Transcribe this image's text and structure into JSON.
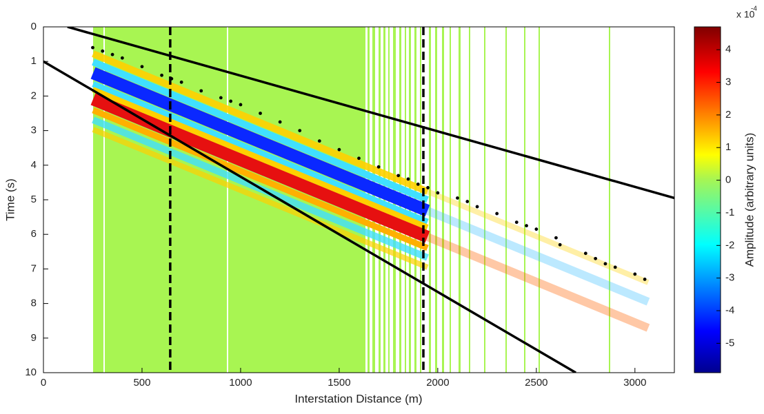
{
  "chart_data": {
    "type": "scatter",
    "xlabel": "Interstation Distance (m)",
    "ylabel": "Time (s)",
    "xlim": [
      0,
      3200
    ],
    "xticks": [
      0,
      500,
      1000,
      1500,
      2000,
      2500,
      3000
    ],
    "ylim": [
      0,
      10
    ],
    "yticks": [
      0,
      1,
      2,
      3,
      4,
      5,
      6,
      7,
      8,
      9,
      10
    ],
    "y_inverted": true,
    "x": [
      250,
      300,
      350,
      400,
      500,
      600,
      650,
      700,
      800,
      900,
      950,
      1000,
      1100,
      1200,
      1300,
      1400,
      1500,
      1600,
      1700,
      1800,
      1850,
      1900,
      1950,
      2000,
      2100,
      2150,
      2200,
      2300,
      2400,
      2450,
      2500,
      2600,
      2620,
      2750,
      2800,
      2850,
      2900,
      3000,
      3050
    ],
    "y": [
      0.6,
      0.7,
      0.8,
      0.9,
      1.15,
      1.4,
      1.5,
      1.6,
      1.85,
      2.05,
      2.15,
      2.25,
      2.5,
      2.75,
      3.0,
      3.3,
      3.55,
      3.8,
      4.05,
      4.3,
      4.4,
      4.55,
      4.65,
      4.8,
      4.95,
      5.05,
      5.2,
      5.4,
      5.65,
      5.75,
      5.85,
      6.1,
      6.3,
      6.55,
      6.7,
      6.85,
      6.95,
      7.15,
      7.3
    ],
    "marker_color": "#000000",
    "lines": [
      {
        "x": [
          122,
          3200
        ],
        "y": [
          0,
          4.95
        ],
        "style": "solid",
        "color": "#000000"
      },
      {
        "x": [
          0,
          2700
        ],
        "y": [
          1,
          10
        ],
        "style": "solid",
        "color": "#000000"
      },
      {
        "x": [
          643,
          643
        ],
        "y": [
          0,
          10
        ],
        "style": "dashed",
        "color": "#000000"
      },
      {
        "x": [
          1927,
          1927
        ],
        "y": [
          0,
          10
        ],
        "style": "dashed",
        "color": "#000000"
      }
    ],
    "colorbar": {
      "label": "Amplitude (arbitrary units)",
      "multiplier": "x 10",
      "exponent": "-4",
      "clim": [
        -5.9,
        4.7
      ],
      "ticks": [
        -5,
        -4,
        -3,
        -2,
        -1,
        0,
        1,
        2,
        3,
        4
      ],
      "colormap": "jet"
    }
  }
}
